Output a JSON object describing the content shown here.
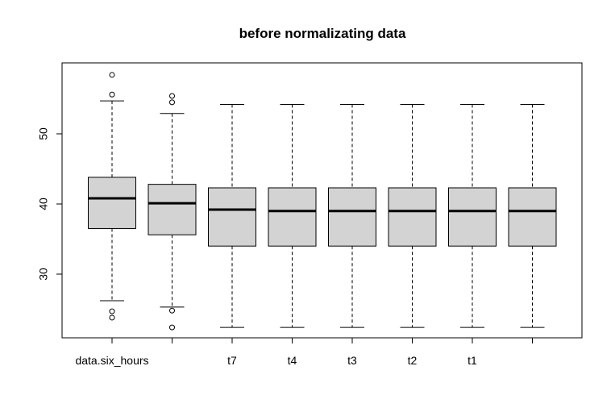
{
  "chart_data": {
    "type": "boxplot",
    "title": "before normalizating data",
    "xlabel": "",
    "ylabel": "",
    "ylim": [
      21,
      60
    ],
    "yticks": [
      30,
      40,
      50
    ],
    "colors": {
      "box_fill": "#d3d3d3",
      "stroke": "#000000"
    },
    "boxes": [
      {
        "label": "data.six_hours",
        "min": 26.2,
        "q1": 36.5,
        "median": 40.8,
        "q3": 43.8,
        "max": 54.7,
        "outliers": [
          58.4,
          55.6,
          24.7,
          23.8
        ]
      },
      {
        "label": "",
        "min": 25.3,
        "q1": 35.6,
        "median": 40.1,
        "q3": 42.8,
        "max": 52.9,
        "outliers": [
          55.4,
          54.5,
          24.8,
          22.4
        ]
      },
      {
        "label": "t7",
        "min": 22.4,
        "q1": 34.0,
        "median": 39.2,
        "q3": 42.3,
        "max": 54.2,
        "outliers": []
      },
      {
        "label": "t4",
        "min": 22.4,
        "q1": 34.0,
        "median": 39.0,
        "q3": 42.3,
        "max": 54.2,
        "outliers": []
      },
      {
        "label": "t3",
        "min": 22.4,
        "q1": 34.0,
        "median": 39.0,
        "q3": 42.3,
        "max": 54.2,
        "outliers": []
      },
      {
        "label": "t2",
        "min": 22.4,
        "q1": 34.0,
        "median": 39.0,
        "q3": 42.3,
        "max": 54.2,
        "outliers": []
      },
      {
        "label": "t1",
        "min": 22.4,
        "q1": 34.0,
        "median": 39.0,
        "q3": 42.3,
        "max": 54.2,
        "outliers": []
      },
      {
        "label": "",
        "min": 22.4,
        "q1": 34.0,
        "median": 39.0,
        "q3": 42.3,
        "max": 54.2,
        "outliers": []
      }
    ]
  }
}
